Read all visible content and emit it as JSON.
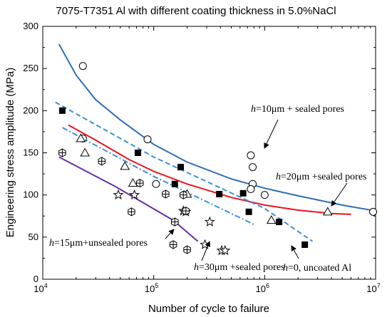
{
  "chart_data": {
    "type": "scatter",
    "title": "7075-T7351 Al with different coating thickness in 5.0%NaCl",
    "xlabel": "Number of cycle to failure",
    "ylabel": "Engineering stress amplitude (MPa)",
    "x_scale": "log",
    "xlim": [
      10000,
      10000000
    ],
    "ylim": [
      0,
      300
    ],
    "x_ticks": [
      {
        "value": 10000,
        "base": "10",
        "exp": "4"
      },
      {
        "value": 100000,
        "base": "10",
        "exp": "5"
      },
      {
        "value": 1000000,
        "base": "10",
        "exp": "6"
      },
      {
        "value": 10000000,
        "base": "10",
        "exp": "7"
      }
    ],
    "y_ticks": [
      0,
      50,
      100,
      150,
      200,
      250,
      300
    ],
    "grid": false,
    "series": [
      {
        "marker": "open-circle",
        "color": "#000000",
        "points": [
          [
            23000,
            253
          ],
          [
            23000,
            167
          ],
          [
            88000,
            166
          ],
          [
            105000,
            113
          ],
          [
            750000,
            147
          ],
          [
            780000,
            133
          ],
          [
            780000,
            113
          ],
          [
            750000,
            107
          ],
          [
            1000000,
            100
          ],
          [
            9500000,
            80
          ]
        ]
      },
      {
        "marker": "filled-square",
        "color": "#000000",
        "points": [
          [
            15000,
            200
          ],
          [
            72000,
            150
          ],
          [
            155000,
            113
          ],
          [
            175000,
            133
          ],
          [
            390000,
            101
          ],
          [
            640000,
            102
          ],
          [
            720000,
            80
          ],
          [
            1350000,
            68
          ],
          [
            2300000,
            41
          ]
        ]
      },
      {
        "marker": "open-triangle",
        "color": "#000000",
        "points": [
          [
            22000,
            167
          ],
          [
            24000,
            150
          ],
          [
            55000,
            134
          ],
          [
            65000,
            114
          ],
          [
            200000,
            101
          ],
          [
            1150000,
            70
          ],
          [
            3700000,
            80
          ]
        ]
      },
      {
        "marker": "open-star",
        "color": "#000000",
        "points": [
          [
            48000,
            100
          ],
          [
            67000,
            100
          ],
          [
            185000,
            81
          ],
          [
            195000,
            80
          ],
          [
            320000,
            68
          ],
          [
            290000,
            41
          ],
          [
            410000,
            34
          ],
          [
            440000,
            34
          ]
        ]
      },
      {
        "marker": "hex-cross",
        "color": "#000000",
        "points": [
          [
            15000,
            150
          ],
          [
            34000,
            140
          ],
          [
            63000,
            80
          ],
          [
            75000,
            114
          ],
          [
            128000,
            101
          ],
          [
            155000,
            68
          ],
          [
            150000,
            41
          ],
          [
            185000,
            100
          ],
          [
            195000,
            81
          ],
          [
            200000,
            35
          ]
        ]
      }
    ],
    "fits": [
      {
        "label_parts": [
          "h",
          "=10μm + sealed pores"
        ],
        "color": "#2e6db5",
        "style": "solid",
        "points": [
          [
            14000,
            279
          ],
          [
            20000,
            242
          ],
          [
            30000,
            213
          ],
          [
            50000,
            189
          ],
          [
            100000,
            160
          ],
          [
            200000,
            139
          ],
          [
            500000,
            119
          ],
          [
            1000000,
            108
          ],
          [
            2000000,
            99
          ],
          [
            5000000,
            88
          ],
          [
            10000000,
            81
          ]
        ]
      },
      {
        "label_parts": [
          "h",
          "=20μm +sealed pores"
        ],
        "color": "#e8151b",
        "style": "solid",
        "points": [
          [
            17000,
            183
          ],
          [
            30000,
            165
          ],
          [
            60000,
            142
          ],
          [
            100000,
            128
          ],
          [
            200000,
            113
          ],
          [
            500000,
            97
          ],
          [
            1000000,
            88
          ],
          [
            2000000,
            82
          ],
          [
            4000000,
            78
          ],
          [
            6000000,
            77
          ]
        ]
      },
      {
        "label_parts": [
          "h",
          "=0, uncoated Al"
        ],
        "color": "#3d8fd8",
        "style": "dashed",
        "points": [
          [
            13000,
            210
          ],
          [
            100000,
            145
          ],
          [
            1000000,
            84
          ],
          [
            2700000,
            45
          ]
        ]
      },
      {
        "label_parts": [
          "h",
          "=30μm +sealed pores"
        ],
        "color": "#3d8fd8",
        "style": "dashdot",
        "points": [
          [
            15000,
            180
          ],
          [
            100000,
            122
          ],
          [
            600000,
            73
          ],
          [
            800000,
            65
          ]
        ]
      },
      {
        "label_parts": [
          "h",
          "=15μm+unsealed pores"
        ],
        "color": "#6a2fa8",
        "style": "solid",
        "points": [
          [
            14000,
            145
          ],
          [
            45000,
            110
          ],
          [
            150000,
            70
          ],
          [
            250000,
            45
          ]
        ]
      }
    ]
  }
}
